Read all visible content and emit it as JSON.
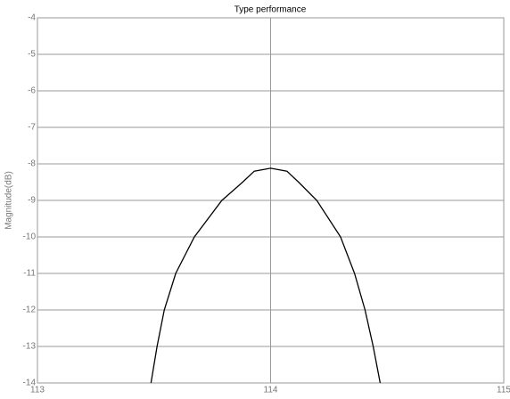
{
  "chart_data": {
    "type": "line",
    "title": "Type performance",
    "ylabel": "Magnitude(dB)",
    "x": [
      113.487,
      113.513,
      113.544,
      113.593,
      113.673,
      113.791,
      113.88,
      113.93,
      114,
      114.07,
      114.12,
      114.198,
      114.3,
      114.36,
      114.405,
      114.44,
      114.47
    ],
    "series": [
      {
        "color": "#000000",
        "values": [
          -14,
          -13,
          -12,
          -11,
          -10,
          -9,
          -8.5,
          -8.2,
          -8.12,
          -8.2,
          -8.5,
          -9,
          -10,
          -11,
          -12,
          -13,
          -14
        ]
      }
    ],
    "xlim": [
      113,
      115
    ],
    "xticks": [
      113,
      114,
      115
    ],
    "ylim": [
      -14,
      -4
    ],
    "yticks": [
      -4,
      -5,
      -6,
      -7,
      -8,
      -9,
      -10,
      -11,
      -12,
      -13,
      -14
    ],
    "grid": true
  }
}
